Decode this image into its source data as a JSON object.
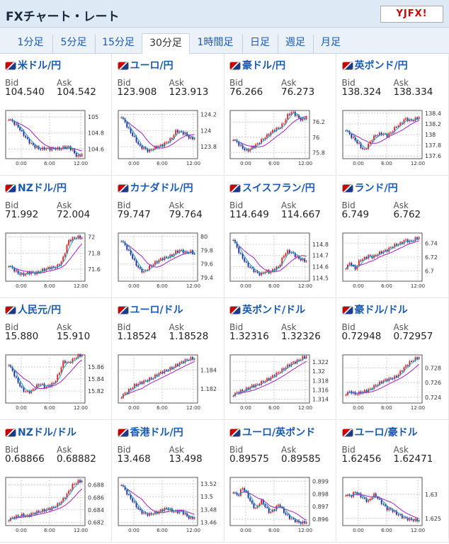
{
  "header": {
    "title": "FXチャート・レート",
    "logo": "YJFX!"
  },
  "tabs": [
    "1分足",
    "5分足",
    "15分足",
    "30分足",
    "1時間足",
    "日足",
    "週足",
    "月足"
  ],
  "active_tab": 3,
  "labels": {
    "bid": "Bid",
    "ask": "Ask"
  },
  "x_ticks": [
    "0:00",
    "6:00",
    "12:00"
  ],
  "pairs": [
    {
      "name": "米ドル/円",
      "bid": "104.540",
      "ask": "104.542",
      "y_ticks": [
        "105",
        "104.8",
        "104.6"
      ],
      "ylim": [
        104.48,
        105.08
      ],
      "seq": [
        104.98,
        104.93,
        104.88,
        104.8,
        104.72,
        104.66,
        104.62,
        104.6,
        104.61,
        104.6,
        104.61,
        104.6,
        104.62,
        104.63,
        104.58,
        104.5,
        104.54
      ]
    },
    {
      "name": "ユーロ/円",
      "bid": "123.908",
      "ask": "123.913",
      "y_ticks": [
        "124.2",
        "124",
        "123.8"
      ],
      "ylim": [
        123.65,
        124.25
      ],
      "seq": [
        124.18,
        124.08,
        123.98,
        123.9,
        123.8,
        123.78,
        123.74,
        123.78,
        123.8,
        123.82,
        123.86,
        123.9,
        124.0,
        123.98,
        123.96,
        123.9,
        123.91
      ]
    },
    {
      "name": "豪ドル/円",
      "bid": "76.266",
      "ask": "76.273",
      "y_ticks": [
        "76.2",
        "76",
        "75.8"
      ],
      "ylim": [
        75.72,
        76.35
      ],
      "seq": [
        75.98,
        75.92,
        75.86,
        75.82,
        75.86,
        75.9,
        75.95,
        76.0,
        76.05,
        76.1,
        76.12,
        76.18,
        76.3,
        76.33,
        76.27,
        76.22,
        76.27
      ]
    },
    {
      "name": "英ポンド/円",
      "bid": "138.324",
      "ask": "138.334",
      "y_ticks": [
        "138.4",
        "138.2",
        "138",
        "137.8",
        "137.6"
      ],
      "ylim": [
        137.55,
        138.45
      ],
      "seq": [
        138.1,
        137.98,
        137.9,
        137.8,
        137.7,
        137.82,
        137.95,
        138.0,
        138.02,
        137.98,
        138.05,
        138.15,
        138.2,
        138.3,
        138.26,
        138.28,
        138.33
      ]
    },
    {
      "name": "NZドル/円",
      "bid": "71.992",
      "ask": "72.004",
      "y_ticks": [
        "72",
        "71.8",
        "71.6"
      ],
      "ylim": [
        71.45,
        72.05
      ],
      "seq": [
        71.65,
        71.6,
        71.55,
        71.53,
        71.55,
        71.56,
        71.55,
        71.58,
        71.6,
        71.62,
        71.62,
        71.65,
        71.75,
        71.95,
        71.98,
        72.0,
        71.99
      ]
    },
    {
      "name": "カナダドル/円",
      "bid": "79.747",
      "ask": "79.764",
      "y_ticks": [
        "80",
        "79.8",
        "79.6",
        "79.4"
      ],
      "ylim": [
        79.35,
        80.05
      ],
      "seq": [
        79.95,
        79.85,
        79.75,
        79.62,
        79.52,
        79.48,
        79.55,
        79.6,
        79.65,
        79.68,
        79.7,
        79.72,
        79.78,
        79.8,
        79.76,
        79.78,
        79.75
      ]
    },
    {
      "name": "スイスフラン/円",
      "bid": "114.649",
      "ask": "114.667",
      "y_ticks": [
        "114.8",
        "114.7",
        "114.6",
        "114.5"
      ],
      "ylim": [
        114.47,
        114.9
      ],
      "seq": [
        114.85,
        114.75,
        114.68,
        114.62,
        114.58,
        114.55,
        114.53,
        114.56,
        114.55,
        114.58,
        114.6,
        114.7,
        114.74,
        114.72,
        114.68,
        114.66,
        114.65
      ]
    },
    {
      "name": "ランド/円",
      "bid": "6.749",
      "ask": "6.762",
      "y_ticks": [
        "6.74",
        "6.72",
        "6.7"
      ],
      "ylim": [
        6.685,
        6.755
      ],
      "seq": [
        6.705,
        6.712,
        6.702,
        6.715,
        6.718,
        6.722,
        6.72,
        6.725,
        6.728,
        6.73,
        6.735,
        6.738,
        6.74,
        6.745,
        6.742,
        6.746,
        6.749
      ]
    },
    {
      "name": "人民元/円",
      "bid": "15.880",
      "ask": "15.910",
      "y_ticks": [
        "15.86",
        "15.84",
        "15.82"
      ],
      "ylim": [
        15.8,
        15.88
      ],
      "seq": [
        15.865,
        15.85,
        15.835,
        15.822,
        15.818,
        15.82,
        15.828,
        15.832,
        15.826,
        15.83,
        15.834,
        15.85,
        15.87,
        15.866,
        15.872,
        15.878,
        15.88
      ]
    },
    {
      "name": "ユーロ/ドル",
      "bid": "1.18524",
      "ask": "1.18528",
      "y_ticks": [
        "1.184",
        "1.182"
      ],
      "ylim": [
        1.1805,
        1.1856
      ],
      "seq": [
        1.1812,
        1.1816,
        1.182,
        1.1824,
        1.1826,
        1.1828,
        1.183,
        1.1832,
        1.1836,
        1.1838,
        1.184,
        1.1842,
        1.1845,
        1.1848,
        1.185,
        1.1852,
        1.1852
      ]
    },
    {
      "name": "英ポンド/ドル",
      "bid": "1.32316",
      "ask": "1.32326",
      "y_ticks": [
        "1.322",
        "1.32",
        "1.318",
        "1.316",
        "1.314"
      ],
      "ylim": [
        1.3132,
        1.3235
      ],
      "seq": [
        1.315,
        1.3155,
        1.3158,
        1.3162,
        1.3168,
        1.317,
        1.3175,
        1.318,
        1.3185,
        1.3192,
        1.3198,
        1.3205,
        1.3212,
        1.3218,
        1.3222,
        1.3228,
        1.3232
      ]
    },
    {
      "name": "豪ドル/ドル",
      "bid": "0.72948",
      "ask": "0.72957",
      "y_ticks": [
        "0.728",
        "0.726",
        "0.724"
      ],
      "ylim": [
        0.7232,
        0.7298
      ],
      "seq": [
        0.7245,
        0.7248,
        0.7244,
        0.7246,
        0.7248,
        0.725,
        0.7254,
        0.7258,
        0.7262,
        0.7264,
        0.7266,
        0.7268,
        0.7275,
        0.7282,
        0.7288,
        0.7292,
        0.7295
      ]
    },
    {
      "name": "NZドル/ドル",
      "bid": "0.68866",
      "ask": "0.68882",
      "y_ticks": [
        "0.688",
        "0.686",
        "0.684",
        "0.682"
      ],
      "ylim": [
        0.6815,
        0.6892
      ],
      "seq": [
        0.6825,
        0.6828,
        0.683,
        0.6832,
        0.683,
        0.6834,
        0.6836,
        0.6838,
        0.684,
        0.6842,
        0.6845,
        0.685,
        0.6858,
        0.6868,
        0.688,
        0.6885,
        0.6887
      ]
    },
    {
      "name": "香港ドル/円",
      "bid": "13.468",
      "ask": "13.498",
      "y_ticks": [
        "13.52",
        "13.5",
        "13.48",
        "13.46"
      ],
      "ylim": [
        13.455,
        13.53
      ],
      "seq": [
        13.52,
        13.508,
        13.498,
        13.488,
        13.478,
        13.474,
        13.472,
        13.474,
        13.476,
        13.48,
        13.482,
        13.478,
        13.476,
        13.478,
        13.472,
        13.466,
        13.468
      ]
    },
    {
      "name": "ユーロ/英ポンド",
      "bid": "0.89575",
      "ask": "0.89585",
      "y_ticks": [
        "0.899",
        "0.898",
        "0.897",
        "0.896"
      ],
      "ylim": [
        0.8955,
        0.8993
      ],
      "seq": [
        0.8982,
        0.8978,
        0.8985,
        0.898,
        0.8972,
        0.8968,
        0.8975,
        0.897,
        0.8965,
        0.8968,
        0.8972,
        0.8966,
        0.8962,
        0.896,
        0.8958,
        0.8957,
        0.8958
      ]
    },
    {
      "name": "ユーロ/豪ドル",
      "bid": "1.62456",
      "ask": "1.62471",
      "y_ticks": [
        "1.63",
        "1.625"
      ],
      "ylim": [
        1.6235,
        1.6335
      ],
      "seq": [
        1.63,
        1.6295,
        1.6305,
        1.6298,
        1.629,
        1.6285,
        1.63,
        1.6292,
        1.628,
        1.627,
        1.6268,
        1.626,
        1.6255,
        1.625,
        1.6248,
        1.6246,
        1.6246
      ]
    }
  ],
  "colors": {
    "up": "#e02020",
    "down": "#1a2aa0",
    "ma": "#a020c0",
    "ma2": "#20a0c0"
  }
}
